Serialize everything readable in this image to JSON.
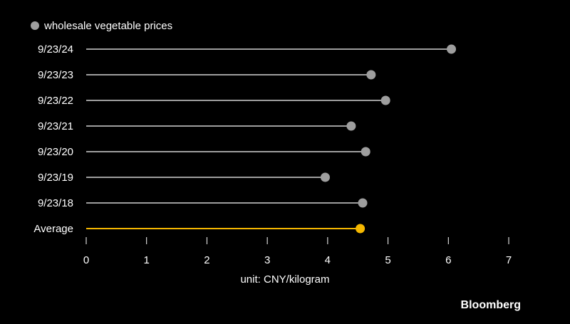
{
  "chart_data": {
    "type": "lollipop",
    "categories": [
      "9/23/24",
      "9/23/23",
      "9/23/22",
      "9/23/21",
      "9/23/20",
      "9/23/19",
      "9/23/18",
      "Average"
    ],
    "values": [
      6.05,
      4.72,
      4.96,
      4.39,
      4.63,
      3.96,
      4.58,
      4.54
    ],
    "highlight_category": "Average",
    "series": [
      {
        "name": "wholesale vegetable prices",
        "values": [
          6.05,
          4.72,
          4.96,
          4.39,
          4.63,
          3.96,
          4.58,
          4.54
        ]
      }
    ],
    "legend": {
      "label": "wholesale vegetable prices",
      "position": "top-left"
    },
    "xlabel": "unit: CNY/kilogram",
    "xlim": [
      0,
      7
    ],
    "xticks": [
      0,
      1,
      2,
      3,
      4,
      5,
      6,
      7
    ],
    "grid": false,
    "colors": {
      "background": "#000000",
      "series": "#9e9e9e",
      "highlight": "#f5b800",
      "text": "#ffffff"
    }
  },
  "branding": {
    "logo_text": "Bloomberg"
  }
}
